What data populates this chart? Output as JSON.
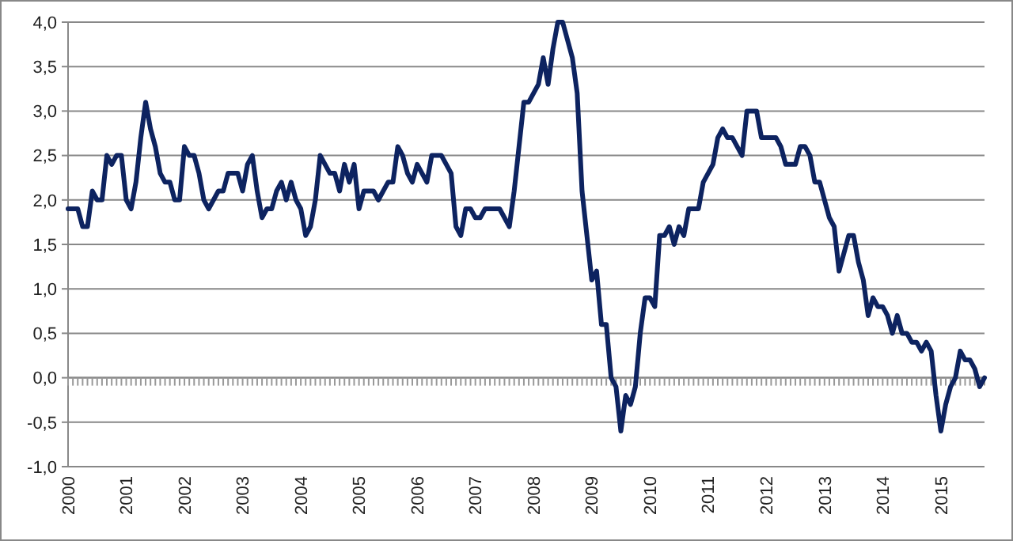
{
  "chart_data": {
    "type": "line",
    "categories": [
      "2000",
      null,
      null,
      null,
      null,
      null,
      null,
      null,
      null,
      null,
      null,
      null,
      "2001",
      null,
      null,
      null,
      null,
      null,
      null,
      null,
      null,
      null,
      null,
      null,
      "2002",
      null,
      null,
      null,
      null,
      null,
      null,
      null,
      null,
      null,
      null,
      null,
      "2003",
      null,
      null,
      null,
      null,
      null,
      null,
      null,
      null,
      null,
      null,
      null,
      "2004",
      null,
      null,
      null,
      null,
      null,
      null,
      null,
      null,
      null,
      null,
      null,
      "2005",
      null,
      null,
      null,
      null,
      null,
      null,
      null,
      null,
      null,
      null,
      null,
      "2006",
      null,
      null,
      null,
      null,
      null,
      null,
      null,
      null,
      null,
      null,
      null,
      "2007",
      null,
      null,
      null,
      null,
      null,
      null,
      null,
      null,
      null,
      null,
      null,
      "2008",
      null,
      null,
      null,
      null,
      null,
      null,
      null,
      null,
      null,
      null,
      null,
      "2009",
      null,
      null,
      null,
      null,
      null,
      null,
      null,
      null,
      null,
      null,
      null,
      "2010",
      null,
      null,
      null,
      null,
      null,
      null,
      null,
      null,
      null,
      null,
      null,
      "2011",
      null,
      null,
      null,
      null,
      null,
      null,
      null,
      null,
      null,
      null,
      null,
      "2012",
      null,
      null,
      null,
      null,
      null,
      null,
      null,
      null,
      null,
      null,
      null,
      "2013",
      null,
      null,
      null,
      null,
      null,
      null,
      null,
      null,
      null,
      null,
      null,
      "2014",
      null,
      null,
      null,
      null,
      null,
      null,
      null,
      null,
      null,
      null,
      null,
      "2015",
      null,
      null,
      null,
      null,
      null,
      null,
      null,
      null,
      null
    ],
    "series": [
      {
        "color": "#0d2360",
        "values": [
          1.9,
          1.9,
          1.9,
          1.7,
          1.7,
          2.1,
          2.0,
          2.0,
          2.5,
          2.4,
          2.5,
          2.5,
          2.0,
          1.9,
          2.2,
          2.7,
          3.1,
          2.8,
          2.6,
          2.3,
          2.2,
          2.2,
          2.0,
          2.0,
          2.6,
          2.5,
          2.5,
          2.3,
          2.0,
          1.9,
          2.0,
          2.1,
          2.1,
          2.3,
          2.3,
          2.3,
          2.1,
          2.4,
          2.5,
          2.1,
          1.8,
          1.9,
          1.9,
          2.1,
          2.2,
          2.0,
          2.2,
          2.0,
          1.9,
          1.6,
          1.7,
          2.0,
          2.5,
          2.4,
          2.3,
          2.3,
          2.1,
          2.4,
          2.2,
          2.4,
          1.9,
          2.1,
          2.1,
          2.1,
          2.0,
          2.1,
          2.2,
          2.2,
          2.6,
          2.5,
          2.3,
          2.2,
          2.4,
          2.3,
          2.2,
          2.5,
          2.5,
          2.5,
          2.4,
          2.3,
          1.7,
          1.6,
          1.9,
          1.9,
          1.8,
          1.8,
          1.9,
          1.9,
          1.9,
          1.9,
          1.8,
          1.7,
          2.1,
          2.6,
          3.1,
          3.1,
          3.2,
          3.3,
          3.6,
          3.3,
          3.7,
          4.0,
          4.0,
          3.8,
          3.6,
          3.2,
          2.1,
          1.6,
          1.1,
          1.2,
          0.6,
          0.6,
          0.0,
          -0.1,
          -0.6,
          -0.2,
          -0.3,
          -0.1,
          0.5,
          0.9,
          0.9,
          0.8,
          1.6,
          1.6,
          1.7,
          1.5,
          1.7,
          1.6,
          1.9,
          1.9,
          1.9,
          2.2,
          2.3,
          2.4,
          2.7,
          2.8,
          2.7,
          2.7,
          2.6,
          2.5,
          3.0,
          3.0,
          3.0,
          2.7,
          2.7,
          2.7,
          2.7,
          2.6,
          2.4,
          2.4,
          2.4,
          2.6,
          2.6,
          2.5,
          2.2,
          2.2,
          2.0,
          1.8,
          1.7,
          1.2,
          1.4,
          1.6,
          1.6,
          1.3,
          1.1,
          0.7,
          0.9,
          0.8,
          0.8,
          0.7,
          0.5,
          0.7,
          0.5,
          0.5,
          0.4,
          0.4,
          0.3,
          0.4,
          0.3,
          -0.2,
          -0.6,
          -0.3,
          -0.1,
          0.0,
          0.3,
          0.2,
          0.2,
          0.1,
          -0.1,
          0.0
        ]
      }
    ],
    "ylim": [
      -1,
      4
    ],
    "yticks": [
      {
        "value": -1,
        "label": "-1,0"
      },
      {
        "value": -0.5,
        "label": "-0,5"
      },
      {
        "value": 0,
        "label": "0,0"
      },
      {
        "value": 0.5,
        "label": "0,5"
      },
      {
        "value": 1,
        "label": "1,0"
      },
      {
        "value": 1.5,
        "label": "1,5"
      },
      {
        "value": 2,
        "label": "2,0"
      },
      {
        "value": 2.5,
        "label": "2,5"
      },
      {
        "value": 3,
        "label": "3,0"
      },
      {
        "value": 3.5,
        "label": "3,5"
      },
      {
        "value": 4,
        "label": "4,0"
      }
    ],
    "grid": "y",
    "marker": "none",
    "line_style": "solid"
  }
}
